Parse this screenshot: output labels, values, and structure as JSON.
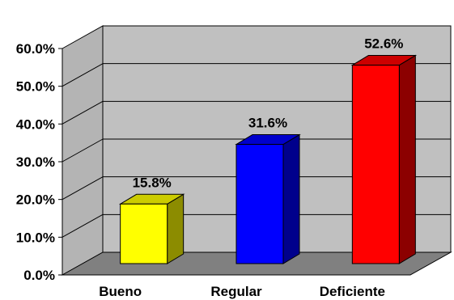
{
  "chart_data": {
    "type": "bar",
    "categories": [
      "Bueno",
      "Regular",
      "Deficiente"
    ],
    "values": [
      15.8,
      31.6,
      52.6
    ],
    "value_labels": [
      "15.8%",
      "31.6%",
      "52.6%"
    ],
    "ylim": [
      0,
      60
    ],
    "yticks": [
      0,
      10,
      20,
      30,
      40,
      50,
      60
    ],
    "ytick_labels": [
      "0.0%",
      "10.0%",
      "20.0%",
      "30.0%",
      "40.0%",
      "50.0%",
      "60.0%"
    ],
    "grid": true,
    "three_d": true,
    "colors": {
      "bars": [
        "#ffff00",
        "#0000ff",
        "#ff0000"
      ],
      "back_wall": "#c0c0c0",
      "side_wall": "#b4b4b4",
      "floor": "#808080",
      "gridline": "#000000"
    }
  }
}
